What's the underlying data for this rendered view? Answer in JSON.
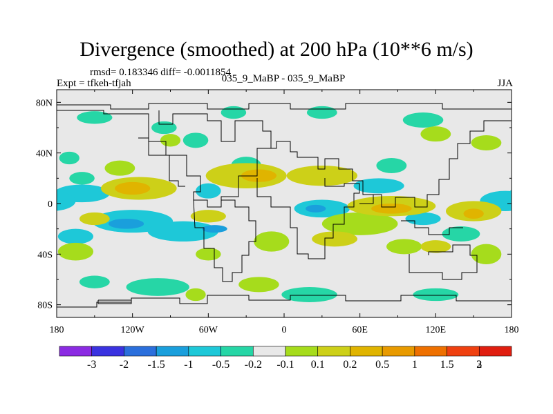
{
  "chart_data": {
    "type": "heatmap",
    "title": "Divergence (smoothed) at 200 hPa (10**6 m/s)",
    "subtitle_left_top": "rmsd= 0.183346 diff= -0.0011854",
    "subtitle_left": "Expt = tfkeh-tfjah",
    "subtitle_center": "035_9_MaBP - 035_9_MaBP",
    "subtitle_right": "JJA",
    "x_ticks": [
      {
        "value": -180,
        "label": "180"
      },
      {
        "value": -120,
        "label": "120W"
      },
      {
        "value": -60,
        "label": "60W"
      },
      {
        "value": 0,
        "label": "0"
      },
      {
        "value": 60,
        "label": "60E"
      },
      {
        "value": 120,
        "label": "120E"
      },
      {
        "value": 180,
        "label": "180"
      }
    ],
    "y_ticks": [
      {
        "value": 80,
        "label": "80N"
      },
      {
        "value": 40,
        "label": "40N"
      },
      {
        "value": 0,
        "label": "0"
      },
      {
        "value": -40,
        "label": "40S"
      },
      {
        "value": -80,
        "label": "80S"
      }
    ],
    "xlim": [
      -180,
      180
    ],
    "ylim": [
      -90,
      90
    ],
    "colorbar": {
      "colors": [
        "#8b2be2",
        "#3a32e0",
        "#2b6fdc",
        "#1a9fdc",
        "#1ec8d8",
        "#26d6a6",
        "#e8e8e8",
        "#a6dc1c",
        "#cdd018",
        "#e0b400",
        "#e89a00",
        "#ee7000",
        "#ef4010",
        "#e01e10"
      ],
      "labels": [
        "-3",
        "-2",
        "-1.5",
        "-1",
        "-0.5",
        "-0.2",
        "-0.1",
        "0.1",
        "0.2",
        "0.5",
        "1",
        "1.5",
        "2",
        "3"
      ]
    },
    "field_levels": [
      {
        "color": "#26d6a6",
        "blobs": [
          [
            -150,
            68,
            14,
            5
          ],
          [
            -95,
            60,
            10,
            5
          ],
          [
            -40,
            72,
            10,
            5
          ],
          [
            30,
            72,
            12,
            5
          ],
          [
            110,
            66,
            16,
            6
          ],
          [
            -170,
            36,
            8,
            5
          ],
          [
            -70,
            50,
            10,
            6
          ],
          [
            -30,
            30,
            12,
            7
          ],
          [
            140,
            -24,
            15,
            6
          ],
          [
            -100,
            -66,
            25,
            7
          ],
          [
            20,
            -72,
            22,
            6
          ],
          [
            -150,
            -62,
            12,
            5
          ],
          [
            120,
            -72,
            18,
            5
          ],
          [
            85,
            30,
            12,
            6
          ],
          [
            -160,
            20,
            10,
            5
          ]
        ]
      },
      {
        "color": "#1ec8d8",
        "blobs": [
          [
            -160,
            8,
            22,
            7
          ],
          [
            -120,
            -14,
            32,
            9
          ],
          [
            -80,
            -22,
            28,
            8
          ],
          [
            30,
            -4,
            22,
            7
          ],
          [
            75,
            14,
            20,
            6
          ],
          [
            175,
            2,
            20,
            8
          ],
          [
            -60,
            10,
            10,
            6
          ],
          [
            110,
            -12,
            14,
            5
          ],
          [
            -165,
            -26,
            14,
            6
          ]
        ]
      },
      {
        "color": "#1a9fdc",
        "blobs": [
          [
            -125,
            -16,
            14,
            4
          ],
          [
            -55,
            -20,
            10,
            3
          ],
          [
            25,
            -4,
            8,
            3
          ]
        ]
      },
      {
        "color": "#a6dc1c",
        "blobs": [
          [
            -165,
            -38,
            14,
            7
          ],
          [
            -10,
            -30,
            14,
            8
          ],
          [
            60,
            -16,
            30,
            9
          ],
          [
            95,
            -34,
            14,
            6
          ],
          [
            -60,
            -40,
            10,
            5
          ],
          [
            160,
            -40,
            12,
            8
          ],
          [
            -70,
            -72,
            8,
            5
          ],
          [
            120,
            55,
            12,
            6
          ],
          [
            -130,
            28,
            12,
            6
          ],
          [
            -20,
            -64,
            16,
            6
          ],
          [
            -90,
            50,
            8,
            5
          ],
          [
            160,
            48,
            12,
            6
          ]
        ]
      },
      {
        "color": "#cdd018",
        "blobs": [
          [
            -115,
            12,
            30,
            9
          ],
          [
            -30,
            22,
            32,
            10
          ],
          [
            30,
            22,
            28,
            8
          ],
          [
            85,
            -2,
            35,
            8
          ],
          [
            150,
            -6,
            22,
            8
          ],
          [
            -60,
            -10,
            14,
            5
          ],
          [
            40,
            -28,
            18,
            6
          ],
          [
            -150,
            -12,
            12,
            5
          ],
          [
            120,
            -34,
            12,
            5
          ]
        ]
      },
      {
        "color": "#e0b400",
        "blobs": [
          [
            -120,
            12,
            14,
            5
          ],
          [
            -20,
            22,
            14,
            5
          ],
          [
            85,
            -4,
            16,
            4
          ],
          [
            150,
            -8,
            8,
            4
          ]
        ]
      }
    ]
  }
}
